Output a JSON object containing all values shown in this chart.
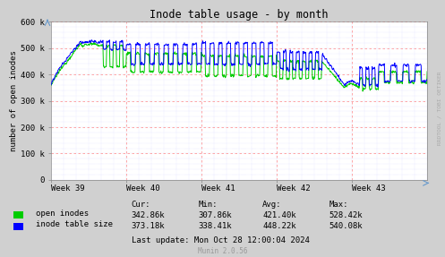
{
  "title": "Inode table usage - by month",
  "ylabel": "number of open inodes",
  "xlabel_ticks": [
    "Week 39",
    "Week 40",
    "Week 41",
    "Week 42",
    "Week 43"
  ],
  "ylim": [
    0,
    600000
  ],
  "yticks": [
    0,
    100000,
    200000,
    300000,
    400000,
    500000,
    600000
  ],
  "ytick_labels": [
    "0",
    "100 k",
    "200 k",
    "300 k",
    "400 k",
    "500 k",
    "600 k"
  ],
  "bg_color": "#d0d0d0",
  "plot_bg_color": "#ffffff",
  "grid_color_red": "#ff9999",
  "grid_color_blue": "#ccccff",
  "line_color_green": "#00cc00",
  "line_color_blue": "#0000ff",
  "legend_items": [
    "open inodes",
    "inode table size"
  ],
  "legend_colors": [
    "#00cc00",
    "#0000ff"
  ],
  "stats_headers": [
    "Cur:",
    "Min:",
    "Avg:",
    "Max:"
  ],
  "stats_open": [
    "342.86k",
    "307.86k",
    "421.40k",
    "528.42k"
  ],
  "stats_inode": [
    "373.18k",
    "338.41k",
    "448.22k",
    "540.08k"
  ],
  "last_update": "Last update: Mon Oct 28 12:00:04 2024",
  "munin_version": "Munin 2.0.56",
  "watermark": "RRDTOOL / TOBI OETIKER",
  "figsize": [
    4.97,
    2.87
  ],
  "dpi": 100
}
